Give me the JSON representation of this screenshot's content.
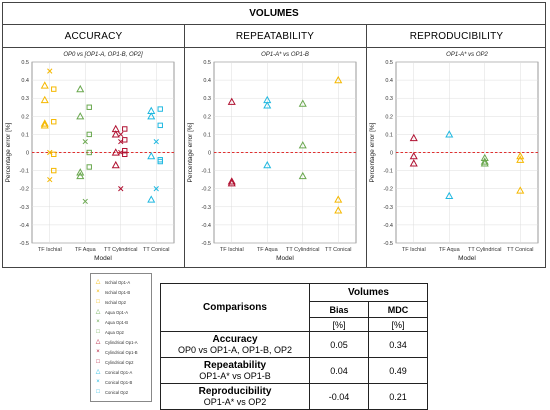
{
  "header": {
    "title": "VOLUMES"
  },
  "sections": [
    {
      "title": "ACCURACY"
    },
    {
      "title": "REPEATABILITY"
    },
    {
      "title": "REPRODUCIBILITY"
    }
  ],
  "colors": {
    "ischial": "#f5b800",
    "aqua": "#6aa84f",
    "cylindrical": "#b01030",
    "conical": "#20b8e0",
    "zero_line": "#e03030"
  },
  "chart_data": [
    {
      "type": "scatter",
      "title": "OP0 vs [OP1-A, OP1-B, OP2]",
      "xlabel": "Model",
      "ylabel": "Percentage error [%]",
      "ylim": [
        -0.5,
        0.5
      ],
      "yticks": [
        "0.5",
        "0.4",
        "0.3",
        "0.2",
        "0.1",
        "0",
        "-0.1",
        "-0.2",
        "-0.3",
        "-0.4",
        "-0.5"
      ],
      "categories": [
        "TF Ischial",
        "TF Aqua",
        "TT Cylindrical",
        "TT Conical"
      ],
      "grid": true,
      "reference_line": 0,
      "series": [
        {
          "name": "Ischial Op1-A",
          "category": "TF Ischial",
          "marker": "triangle",
          "color": "#f5b800",
          "values": [
            0.37,
            0.29,
            0.16,
            0.15
          ]
        },
        {
          "name": "Ischial Op1-B",
          "category": "TF Ischial",
          "marker": "x",
          "color": "#f5b800",
          "values": [
            0.45,
            0.0,
            0.0,
            -0.15
          ]
        },
        {
          "name": "Ischial Op2",
          "category": "TF Ischial",
          "marker": "square",
          "color": "#f5b800",
          "values": [
            0.35,
            0.17,
            -0.01,
            -0.1
          ]
        },
        {
          "name": "Aqua Op1-A",
          "category": "TF Aqua",
          "marker": "triangle",
          "color": "#6aa84f",
          "values": [
            0.35,
            0.2,
            -0.11,
            -0.13
          ]
        },
        {
          "name": "Aqua Op1-B",
          "category": "TF Aqua",
          "marker": "x",
          "color": "#6aa84f",
          "values": [
            0.06,
            -0.27
          ]
        },
        {
          "name": "Aqua Op2",
          "category": "TF Aqua",
          "marker": "square",
          "color": "#6aa84f",
          "values": [
            0.25,
            0.1,
            0.0,
            -0.08
          ]
        },
        {
          "name": "Cylindrical Op1-A",
          "category": "TT Cylindrical",
          "marker": "triangle",
          "color": "#b01030",
          "values": [
            0.13,
            0.1,
            0.0,
            -0.07
          ]
        },
        {
          "name": "Cylindrical Op1-B",
          "category": "TT Cylindrical",
          "marker": "x",
          "color": "#b01030",
          "values": [
            0.1,
            0.06,
            0.0,
            -0.2
          ]
        },
        {
          "name": "Cylindrical Op2",
          "category": "TT Cylindrical",
          "marker": "square",
          "color": "#b01030",
          "values": [
            0.13,
            0.07,
            0.01,
            -0.01
          ]
        },
        {
          "name": "Conical Op1-A",
          "category": "TT Conical",
          "marker": "triangle",
          "color": "#20b8e0",
          "values": [
            0.23,
            0.2,
            -0.02,
            -0.26
          ]
        },
        {
          "name": "Conical Op1-B",
          "category": "TT Conical",
          "marker": "x",
          "color": "#20b8e0",
          "values": [
            0.06,
            -0.2
          ]
        },
        {
          "name": "Conical Op2",
          "category": "TT Conical",
          "marker": "square",
          "color": "#20b8e0",
          "values": [
            0.24,
            0.15,
            -0.04,
            -0.05
          ]
        }
      ]
    },
    {
      "type": "scatter",
      "title": "OP1-A* vs OP1-B",
      "xlabel": "Model",
      "ylabel": "Percentage error [%]",
      "ylim": [
        -0.5,
        0.5
      ],
      "yticks": [
        "0.5",
        "0.4",
        "0.3",
        "0.2",
        "0.1",
        "0",
        "-0.1",
        "-0.2",
        "-0.3",
        "-0.4",
        "-0.5"
      ],
      "categories": [
        "TF Ischial",
        "TF Aqua",
        "TT Cylindrical",
        "TT Conical"
      ],
      "grid": true,
      "reference_line": 0,
      "series": [
        {
          "category": "TF Ischial",
          "marker": "triangle",
          "color": "#b01030",
          "values": [
            0.28,
            -0.16,
            -0.17
          ]
        },
        {
          "category": "TF Aqua",
          "marker": "triangle",
          "color": "#20b8e0",
          "values": [
            0.29,
            0.26,
            -0.07
          ]
        },
        {
          "category": "TT Cylindrical",
          "marker": "triangle",
          "color": "#6aa84f",
          "values": [
            0.27,
            0.04,
            -0.13
          ]
        },
        {
          "category": "TT Conical",
          "marker": "triangle",
          "color": "#f5b800",
          "values": [
            0.4,
            -0.26,
            -0.32
          ]
        }
      ]
    },
    {
      "type": "scatter",
      "title": "OP1-A* vs OP2",
      "xlabel": "Model",
      "ylabel": "Percentage error [%]",
      "ylim": [
        -0.5,
        0.5
      ],
      "yticks": [
        "0.5",
        "0.4",
        "0.3",
        "0.2",
        "0.1",
        "0",
        "-0.1",
        "-0.2",
        "-0.3",
        "-0.4",
        "-0.5"
      ],
      "categories": [
        "TF Ischial",
        "TF Aqua",
        "TT Cylindrical",
        "TT Conical"
      ],
      "grid": true,
      "reference_line": 0,
      "series": [
        {
          "category": "TF Ischial",
          "marker": "triangle",
          "color": "#b01030",
          "values": [
            0.08,
            -0.02,
            -0.06
          ]
        },
        {
          "category": "TF Aqua",
          "marker": "triangle",
          "color": "#20b8e0",
          "values": [
            0.1,
            -0.24
          ]
        },
        {
          "category": "TT Cylindrical",
          "marker": "triangle",
          "color": "#6aa84f",
          "values": [
            -0.03,
            -0.05,
            -0.06
          ]
        },
        {
          "category": "TT Conical",
          "marker": "triangle",
          "color": "#f5b800",
          "values": [
            -0.02,
            -0.04,
            -0.21
          ]
        }
      ]
    }
  ],
  "legend": [
    {
      "label": "Ischial Op1-A",
      "marker": "triangle",
      "color": "#f5b800"
    },
    {
      "label": "Ischial Op1-B",
      "marker": "x",
      "color": "#f5b800"
    },
    {
      "label": "Ischial Op2",
      "marker": "square",
      "color": "#f5b800"
    },
    {
      "label": "Aqua Op1-A",
      "marker": "triangle",
      "color": "#6aa84f"
    },
    {
      "label": "Aqua Op1-B",
      "marker": "x",
      "color": "#6aa84f"
    },
    {
      "label": "Aqua Op2",
      "marker": "square",
      "color": "#6aa84f"
    },
    {
      "label": "Cylindrical Op1-A",
      "marker": "triangle",
      "color": "#b01030"
    },
    {
      "label": "Cylindrical Op1-B",
      "marker": "x",
      "color": "#b01030"
    },
    {
      "label": "Cylindrical Op2",
      "marker": "square",
      "color": "#b01030"
    },
    {
      "label": "Conical Op1-A",
      "marker": "triangle",
      "color": "#20b8e0"
    },
    {
      "label": "Conical Op1-B",
      "marker": "x",
      "color": "#20b8e0"
    },
    {
      "label": "Conical Op2",
      "marker": "square",
      "color": "#20b8e0"
    }
  ],
  "table": {
    "title": "Volumes",
    "comparisons_header": "Comparisons",
    "bias_header": "Bias",
    "mdc_header": "MDC",
    "unit": "[%]",
    "rows": [
      {
        "name": "Accuracy",
        "detail": "OP0 vs OP1-A, OP1-B, OP2",
        "bias": "0.05",
        "mdc": "0.34"
      },
      {
        "name": "Repeatability",
        "detail": "OP1-A* vs OP1-B",
        "bias": "0.04",
        "mdc": "0.49"
      },
      {
        "name": "Reproducibility",
        "detail": "OP1-A* vs OP2",
        "bias": "-0.04",
        "mdc": "0.21"
      }
    ]
  }
}
